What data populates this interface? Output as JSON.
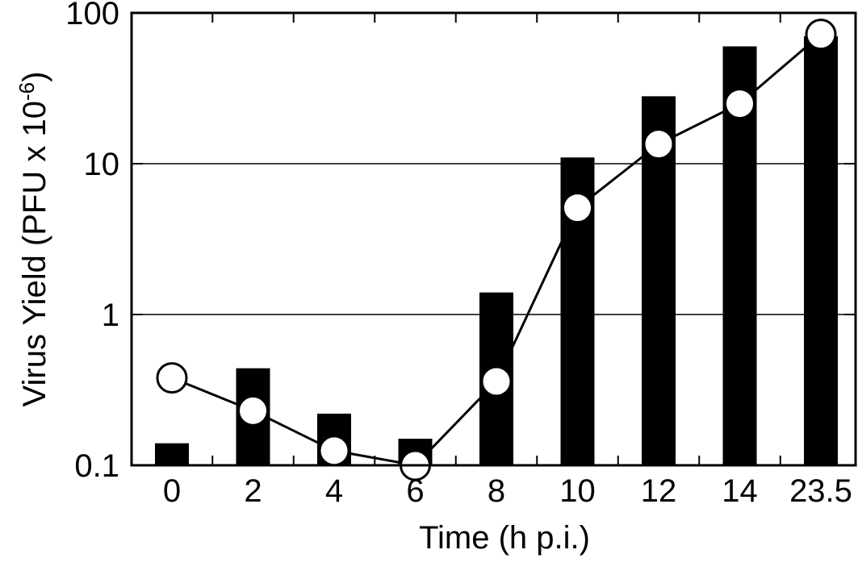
{
  "chart_data": {
    "type": "bar",
    "xlabel": "Time (h p.i.)",
    "ylabel": {
      "base": "Virus Yield (PFU x 10",
      "exponent": "-6",
      "close": ")"
    },
    "yscale": "log",
    "ylim": [
      0.1,
      100
    ],
    "yticks": [
      "0.1",
      "1",
      "10",
      "100"
    ],
    "grid": "horizontal lines at 1 and 10",
    "categories": [
      "0",
      "2",
      "4",
      "6",
      "8",
      "10",
      "12",
      "14",
      "23.5"
    ],
    "series": [
      {
        "kind": "bar",
        "color": "#000000",
        "values": [
          0.14,
          0.44,
          0.22,
          0.15,
          1.4,
          11,
          28,
          60,
          70
        ]
      },
      {
        "kind": "line",
        "marker": "open-circle",
        "color": "#000000",
        "values": [
          0.38,
          0.23,
          0.125,
          0.1,
          0.36,
          5.1,
          13.5,
          25,
          72
        ]
      }
    ]
  }
}
